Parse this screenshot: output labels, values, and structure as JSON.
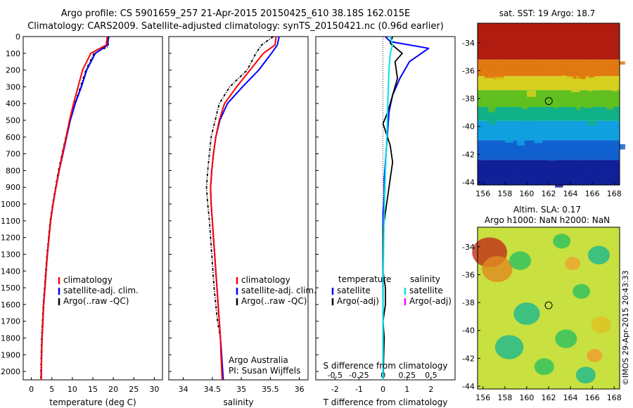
{
  "header": {
    "line1": "Argo profile: CS 5901659_257 21-Apr-2015 20150425_610 38.18S 162.015E",
    "line2": "Climatology: CARS2009. Satellite-adjusted climatology: synTS_20150421.nc (0.96d earlier)"
  },
  "credit": {
    "rotated": "©IMOS 29-Apr-2015 20:43:33"
  },
  "colors": {
    "climatology": "#ff0000",
    "satellite": "#0000ff",
    "argo": "#000000",
    "cyan": "#00e5e5",
    "magenta": "#ff00ff"
  },
  "chart_data": [
    {
      "type": "line",
      "xlabel": "temperature (deg C)",
      "ylabel": "",
      "xlim": [
        -2,
        32
      ],
      "ylim": [
        2050,
        0
      ],
      "xticks": [
        0,
        5,
        10,
        15,
        20,
        25,
        30
      ],
      "yticks": [
        0,
        100,
        200,
        300,
        400,
        500,
        600,
        700,
        800,
        900,
        1000,
        1100,
        1200,
        1300,
        1400,
        1500,
        1600,
        1700,
        1800,
        1900,
        2000
      ],
      "legend_position": "lower-center",
      "series": [
        {
          "name": "climatology",
          "color": "#ff0000",
          "x": [
            18.5,
            18.3,
            14.5,
            12.5,
            11.4,
            10.3,
            9.3,
            8.5,
            7.6,
            6.8,
            6.0,
            5.3,
            4.7,
            4.3,
            3.9,
            3.6,
            3.3,
            3.0,
            2.8,
            2.6,
            2.5,
            2.4
          ],
          "y": [
            0,
            50,
            100,
            200,
            300,
            400,
            500,
            600,
            700,
            800,
            900,
            1000,
            1100,
            1200,
            1300,
            1400,
            1500,
            1600,
            1700,
            1800,
            1900,
            2050
          ]
        },
        {
          "name": "satellite-adj. clim.",
          "color": "#0000ff",
          "x": [
            18.8,
            18.6,
            15.6,
            13.5,
            12.2,
            10.7,
            9.5,
            8.6,
            7.7,
            6.8,
            6.0,
            5.3,
            4.7,
            4.3,
            3.9,
            3.6,
            3.3,
            3.0,
            2.8,
            2.6,
            2.5,
            2.4
          ],
          "y": [
            0,
            50,
            100,
            200,
            300,
            400,
            500,
            600,
            700,
            800,
            900,
            1000,
            1100,
            1200,
            1300,
            1400,
            1500,
            1600,
            1700,
            1800,
            1900,
            2050
          ]
        },
        {
          "name": "Argo(..raw -QC)",
          "color": "#000000",
          "x": [
            18.9,
            18.7,
            15.3,
            13.3,
            12.0,
            10.6,
            9.4,
            8.4,
            7.5,
            6.6,
            5.9,
            5.2,
            4.6,
            4.2,
            3.8,
            3.5,
            3.2,
            2.9,
            2.7,
            2.5,
            2.4,
            2.3
          ],
          "y": [
            0,
            60,
            100,
            200,
            300,
            400,
            500,
            600,
            700,
            800,
            900,
            1000,
            1100,
            1200,
            1300,
            1400,
            1500,
            1600,
            1700,
            1800,
            1900,
            2050
          ]
        }
      ]
    },
    {
      "type": "line",
      "xlabel": "salinity",
      "ylabel": "",
      "xlim": [
        33.75,
        36.15
      ],
      "ylim": [
        2050,
        0
      ],
      "xticks": [
        34,
        34.5,
        35,
        35.5,
        36
      ],
      "xticklabels": [
        "34",
        "34.5",
        "35",
        "35.5",
        "36"
      ],
      "legend_position": "lower-center",
      "series": [
        {
          "name": "climatology",
          "color": "#ff0000",
          "x": [
            35.6,
            35.58,
            35.38,
            35.15,
            34.92,
            34.71,
            34.62,
            34.56,
            34.52,
            34.49,
            34.47,
            34.48,
            34.5,
            34.52,
            34.54,
            34.56,
            34.58,
            34.6,
            34.62,
            34.64,
            34.65,
            34.67
          ],
          "y": [
            0,
            50,
            100,
            200,
            300,
            400,
            500,
            600,
            700,
            800,
            900,
            1000,
            1100,
            1200,
            1300,
            1400,
            1500,
            1600,
            1700,
            1800,
            1900,
            2050
          ]
        },
        {
          "name": "satellite-adj. clim.",
          "color": "#0000ff",
          "x": [
            35.65,
            35.62,
            35.52,
            35.3,
            35.02,
            34.76,
            34.63,
            34.56,
            34.52,
            34.49,
            34.47,
            34.48,
            34.5,
            34.52,
            34.54,
            34.56,
            34.58,
            34.6,
            34.62,
            34.64,
            34.66,
            34.69
          ],
          "y": [
            0,
            50,
            100,
            200,
            300,
            400,
            500,
            600,
            700,
            800,
            900,
            1000,
            1100,
            1200,
            1300,
            1400,
            1500,
            1600,
            1700,
            1800,
            1900,
            2050
          ]
        },
        {
          "name": "Argo(..raw -QC)",
          "color": "#000000",
          "x": [
            35.55,
            35.35,
            35.25,
            35.1,
            34.8,
            34.62,
            34.55,
            34.48,
            34.45,
            34.42,
            34.4,
            34.42,
            34.45,
            34.47,
            34.49,
            34.51,
            34.53,
            34.56,
            34.59,
            34.64,
            34.66,
            34.68
          ],
          "y": [
            0,
            50,
            100,
            200,
            300,
            400,
            500,
            600,
            700,
            800,
            900,
            1000,
            1100,
            1200,
            1300,
            1400,
            1500,
            1600,
            1700,
            1800,
            1900,
            2050
          ]
        }
      ],
      "annotations": [
        "Argo Australia",
        "PI: Susan Wijffels"
      ]
    },
    {
      "type": "line",
      "xlabel": "T difference from climatology",
      "x2label": "S difference from climatology",
      "ylabel": "",
      "xlim": [
        -2.8,
        3.0
      ],
      "ylim": [
        2050,
        0
      ],
      "xticks": [
        -2,
        -1,
        0,
        1,
        2
      ],
      "x2ticks": [
        -0.5,
        -0.25,
        0,
        0.25,
        0.5
      ],
      "x2ticklabels": [
        "-0.5",
        "-0.25",
        "0",
        "0.25",
        "0.5"
      ],
      "legend_position": "lower-center",
      "legend_groups": [
        {
          "title": "temperature",
          "entries": [
            "satellite",
            "Argo(-adj)"
          ]
        },
        {
          "title": "salinity",
          "entries": [
            "satellite",
            "Argo(-adj)"
          ]
        }
      ],
      "series": [
        {
          "name": "satellite",
          "group": "temperature",
          "color": "#0000ff",
          "x": [
            0.1,
            0.3,
            1.9,
            1.1,
            0.7,
            0.4,
            0.25,
            0.2,
            0.15,
            0.1,
            0.05,
            0.05,
            0.0,
            0.0,
            0.0,
            0.0,
            0.0,
            0.0,
            0.0,
            0.0,
            0.0
          ],
          "y": [
            0,
            30,
            70,
            150,
            250,
            350,
            450,
            550,
            650,
            750,
            850,
            950,
            1050,
            1150,
            1250,
            1400,
            1500,
            1600,
            1700,
            1800,
            2050
          ]
        },
        {
          "name": "Argo(-adj)",
          "group": "temperature",
          "color": "#000000",
          "x": [
            0.4,
            0.3,
            0.8,
            0.5,
            0.6,
            0.4,
            0.2,
            0.0,
            0.3,
            0.4,
            0.3,
            0.2,
            0.1,
            0.0,
            0.0,
            0.0,
            0.1,
            0.1,
            0.0,
            0.05,
            0.0
          ],
          "y": [
            0,
            40,
            100,
            150,
            250,
            350,
            450,
            520,
            650,
            750,
            850,
            950,
            1050,
            1150,
            1250,
            1400,
            1500,
            1600,
            1700,
            1800,
            2050
          ]
        },
        {
          "name": "satellite",
          "group": "salinity",
          "color": "#00e5e5",
          "x": [
            0.3,
            0.4,
            0.3,
            0.25,
            0.22,
            0.2,
            0.18,
            0.16,
            0.13,
            0.1,
            0.08,
            0.06,
            0.04,
            0.03,
            0.02,
            0.01,
            0.01,
            0.0,
            0.0,
            0.0,
            0.0
          ],
          "y": [
            0,
            50,
            100,
            200,
            300,
            400,
            500,
            600,
            700,
            800,
            900,
            1000,
            1100,
            1200,
            1300,
            1400,
            1500,
            1600,
            1700,
            1800,
            2050
          ]
        }
      ]
    },
    {
      "type": "heatmap",
      "title": "sat. SST: 19 Argo: 18.7",
      "xlim": [
        155.5,
        168.5
      ],
      "ylim": [
        -44.2,
        -32.6
      ],
      "xticks": [
        156,
        158,
        160,
        162,
        164,
        166,
        168
      ],
      "yticks": [
        -34,
        -36,
        -38,
        -40,
        -42,
        -44
      ],
      "yticklabels": [
        "-34",
        "-36",
        "-38",
        "-40",
        "-42",
        "-44"
      ],
      "marker": {
        "lon": 162.015,
        "lat": -38.18
      },
      "colorbands": [
        {
          "lat_from": -32.6,
          "lat_to": -35.2,
          "color": "#b01c10"
        },
        {
          "lat_from": -35.2,
          "lat_to": -36.4,
          "color": "#e07a10"
        },
        {
          "lat_from": -36.4,
          "lat_to": -37.4,
          "color": "#d8d020"
        },
        {
          "lat_from": -37.4,
          "lat_to": -38.6,
          "color": "#60c020"
        },
        {
          "lat_from": -38.6,
          "lat_to": -39.6,
          "color": "#10b088"
        },
        {
          "lat_from": -39.6,
          "lat_to": -41.0,
          "color": "#10a0e0"
        },
        {
          "lat_from": -41.0,
          "lat_to": -42.4,
          "color": "#1060d0"
        },
        {
          "lat_from": -42.4,
          "lat_to": -44.2,
          "color": "#102098"
        }
      ]
    },
    {
      "type": "heatmap",
      "title": "Altim. SLA: 0.17",
      "subtitle": "Argo h1000: NaN h2000: NaN",
      "xlim": [
        155.5,
        168.5
      ],
      "ylim": [
        -44.2,
        -32.6
      ],
      "xticks": [
        156,
        158,
        160,
        162,
        164,
        166,
        168
      ],
      "yticks": [
        -34,
        -36,
        -38,
        -40,
        -42,
        -44
      ],
      "yticklabels": [
        "-34",
        "-36",
        "-38",
        "-40",
        "-42",
        "-44"
      ],
      "marker": {
        "lon": 162.0,
        "lat": -38.2
      },
      "blobs": [
        {
          "lon": 156.6,
          "lat": -34.4,
          "r": 1.6,
          "color": "#c03018"
        },
        {
          "lon": 157.3,
          "lat": -35.6,
          "r": 1.4,
          "color": "#e08a20"
        },
        {
          "lon": 159.4,
          "lat": -35.0,
          "r": 1.0,
          "color": "#2cc060"
        },
        {
          "lon": 163.2,
          "lat": -33.6,
          "r": 0.8,
          "color": "#2cc060"
        },
        {
          "lon": 166.6,
          "lat": -34.6,
          "r": 1.0,
          "color": "#1cb890"
        },
        {
          "lon": 165.0,
          "lat": -37.2,
          "r": 0.8,
          "color": "#2cc060"
        },
        {
          "lon": 160.0,
          "lat": -38.8,
          "r": 1.2,
          "color": "#1cb890"
        },
        {
          "lon": 158.4,
          "lat": -41.2,
          "r": 1.3,
          "color": "#1cb890"
        },
        {
          "lon": 163.6,
          "lat": -40.6,
          "r": 1.0,
          "color": "#2cc060"
        },
        {
          "lon": 166.8,
          "lat": -39.6,
          "r": 0.9,
          "color": "#e0c020"
        },
        {
          "lon": 161.6,
          "lat": -42.6,
          "r": 0.9,
          "color": "#2cc060"
        },
        {
          "lon": 165.4,
          "lat": -43.2,
          "r": 0.9,
          "color": "#1cb890"
        },
        {
          "lon": 164.2,
          "lat": -35.2,
          "r": 0.7,
          "color": "#f0a030"
        },
        {
          "lon": 166.2,
          "lat": -41.8,
          "r": 0.7,
          "color": "#f09a30"
        }
      ]
    }
  ]
}
